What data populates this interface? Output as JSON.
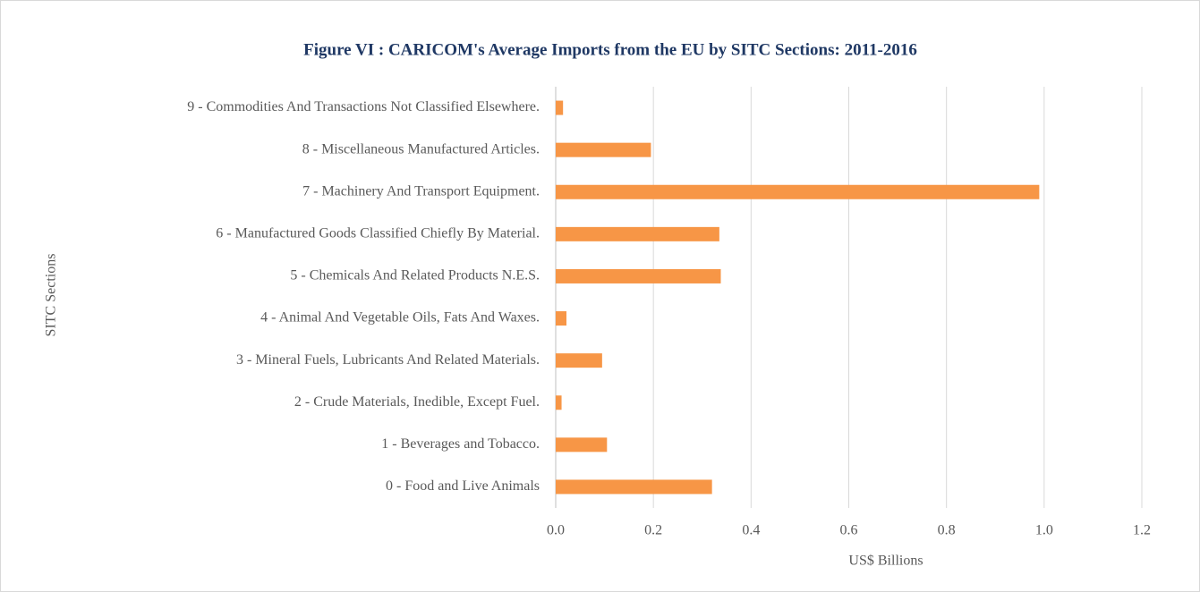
{
  "chart_data": {
    "type": "bar",
    "orientation": "horizontal",
    "title": "Figure VI : CARICOM's Average Imports from the EU by SITC Sections: 2011-2016",
    "x_label": "US$ Billions",
    "y_label": "SITC Sections",
    "categories": [
      "0 - Food and Live Animals",
      "1 - Beverages and Tobacco.",
      "2 - Crude Materials, Inedible, Except Fuel.",
      "3 - Mineral Fuels, Lubricants And Related Materials.",
      "4 - Animal And Vegetable Oils, Fats And Waxes.",
      "5 - Chemicals And Related Products N.E.S.",
      "6 - Manufactured Goods Classified Chiefly By Material.",
      "7 - Machinery And Transport Equipment.",
      "8 - Miscellaneous Manufactured Articles.",
      "9 - Commodities And Transactions Not Classified Elsewhere."
    ],
    "values": [
      0.32,
      0.105,
      0.012,
      0.095,
      0.022,
      0.338,
      0.335,
      0.99,
      0.195,
      0.015
    ],
    "color": "#f79646",
    "xlim": [
      0,
      1.2
    ],
    "xticks": [
      {
        "value": 0,
        "label": "0.0"
      },
      0.2,
      0.4,
      0.6,
      0.8,
      {
        "value": 1,
        "label": "1.0"
      },
      1.2
    ],
    "grid": true
  }
}
